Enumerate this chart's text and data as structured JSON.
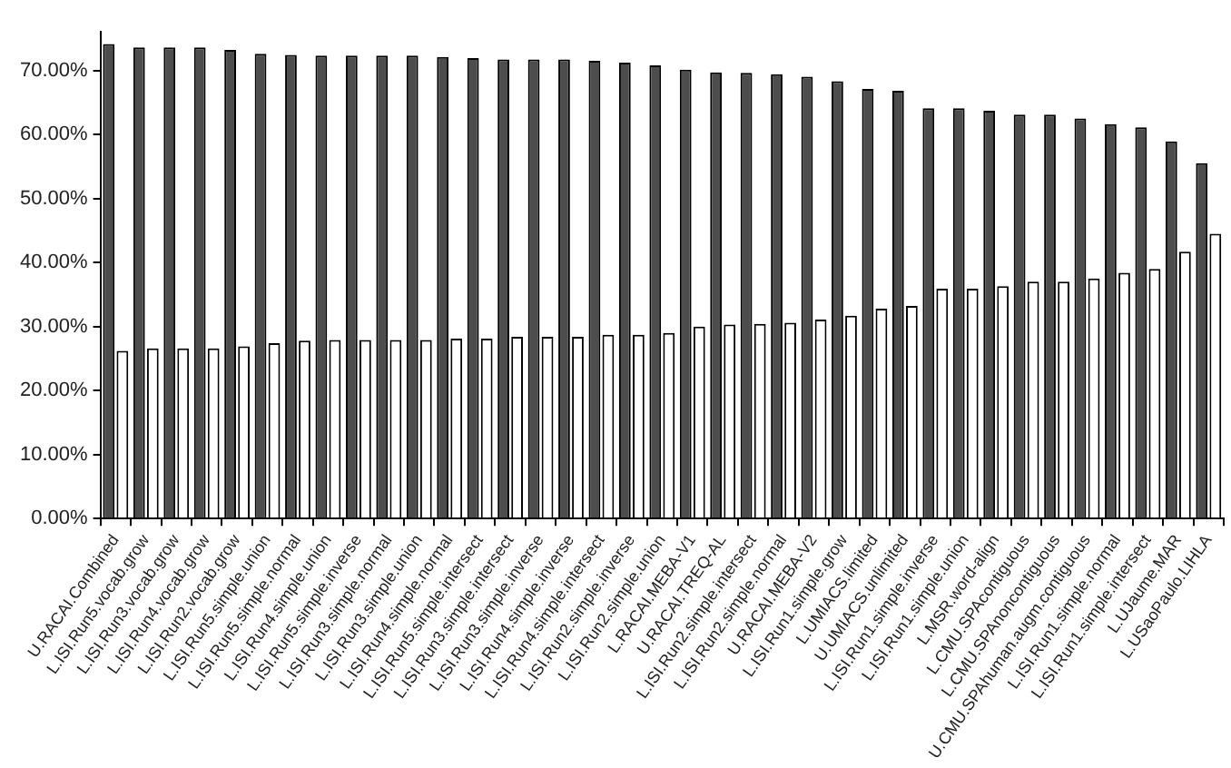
{
  "chart_data": {
    "type": "bar",
    "categories": [
      "U.RACAI.Combined",
      "L.ISI.Run5.vocab.grow",
      "L.ISI.Run3.vocab.grow",
      "L.ISI.Run4.vocab.grow",
      "L.ISI.Run2.vocab.grow",
      "L.ISI.Run5.simple.union",
      "L.ISI.Run5.simple.normal",
      "L.ISI.Run4.simple.union",
      "L.ISI.Run5.simple.inverse",
      "L.ISI.Run3.simple.normal",
      "L.ISI.Run3.simple.union",
      "L.ISI.Run4.simple.normal",
      "L.ISI.Run5.simple.intersect",
      "L.ISI.Run3.simple.intersect",
      "L.ISI.Run3.simple.inverse",
      "L.ISI.Run4.simple.inverse",
      "L.ISI.Run4.simple.intersect",
      "L.ISI.Run2.simple.inverse",
      "L.ISI.Run2.simple.union",
      "L.RACAI.MEBA-V1",
      "U.RACAI.TREQ-AL",
      "L.ISI.Run2.simple.intersect",
      "L.ISI.Run2.simple.normal",
      "U.RACAI.MEBA-V2",
      "L.ISI.Run1.simple.grow",
      "L.UMIACS.limited",
      "U.UMIACS.unlimited",
      "L.ISI.Run1.simple.inverse",
      "L.ISI.Run1.simple.union",
      "L.MSR.word-align",
      "L.CMU.SPAcontiguous",
      "L.CMU.SPAnoncontiguous",
      "U.CMU.SPAhuman.augm.contiguous",
      "L.ISI.Run1.simple.normal",
      "L.ISI.Run1.simple.intersect",
      "L.UJaume.MAR",
      "L.USaoPaulo.LIHLA"
    ],
    "series": [
      {
        "color": "#4d4d4d",
        "values": [
          74.1,
          73.6,
          73.6,
          73.6,
          73.2,
          72.6,
          72.4,
          72.3,
          72.3,
          72.3,
          72.3,
          72.1,
          71.9,
          71.7,
          71.7,
          71.7,
          71.5,
          71.2,
          70.8,
          70.1,
          69.7,
          69.6,
          69.4,
          69.0,
          68.3,
          67.1,
          66.8,
          64.1,
          64.1,
          63.7,
          63.1,
          63.1,
          62.5,
          61.6,
          61.1,
          58.9,
          55.5
        ]
      },
      {
        "color": "#ffffff",
        "values": [
          26.2,
          26.6,
          26.6,
          26.6,
          26.9,
          27.4,
          27.8,
          27.9,
          27.9,
          27.9,
          27.9,
          28.1,
          28.1,
          28.4,
          28.4,
          28.4,
          28.7,
          28.7,
          29.0,
          30.0,
          30.3,
          30.4,
          30.6,
          31.1,
          31.7,
          32.8,
          33.2,
          35.9,
          35.9,
          36.3,
          37.0,
          37.0,
          37.5,
          38.4,
          39.0,
          41.7,
          44.5
        ]
      }
    ],
    "ylim": [
      0,
      76
    ],
    "yticks": [
      {
        "value": 0,
        "label": "0.00%"
      },
      {
        "value": 10,
        "label": "10.00%"
      },
      {
        "value": 20,
        "label": "20.00%"
      },
      {
        "value": 30,
        "label": "30.00%"
      },
      {
        "value": 40,
        "label": "40.00%"
      },
      {
        "value": 50,
        "label": "50.00%"
      },
      {
        "value": 60,
        "label": "60.00%"
      },
      {
        "value": 70,
        "label": "70.00%"
      }
    ]
  }
}
